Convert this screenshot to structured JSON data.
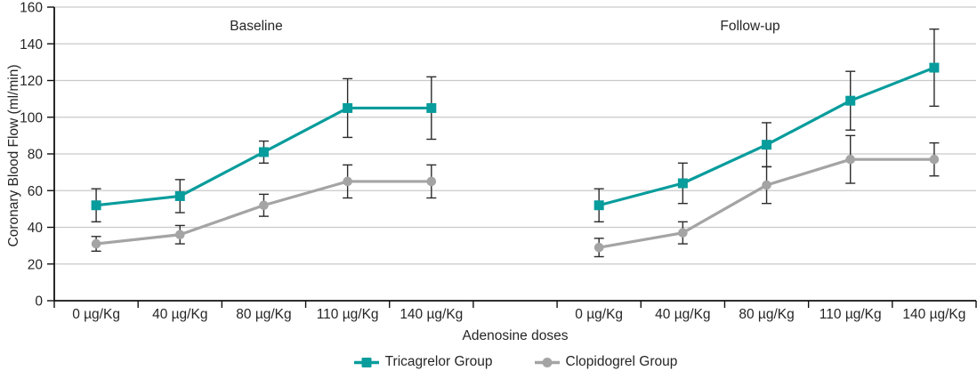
{
  "chart_data": {
    "type": "line",
    "title": "",
    "ylabel": "Coronary Blood Flow (ml/min)",
    "xlabel": "Adenosine doses",
    "ylim": [
      0,
      160
    ],
    "yticks": [
      0,
      20,
      40,
      60,
      80,
      100,
      120,
      140,
      160
    ],
    "grid": "horizontal-only",
    "legend_position": "bottom-center",
    "categories": [
      "0 µg/Kg",
      "40 µg/Kg",
      "80 µg/Kg",
      "110 µg/Kg",
      "140 µg/Kg"
    ],
    "panels": [
      {
        "label": "Baseline"
      },
      {
        "label": "Follow-up"
      }
    ],
    "series": [
      {
        "name": "Tricagrelor Group",
        "color": "#089c9c",
        "marker": "square",
        "data": [
          {
            "panel": "Baseline",
            "values": [
              52,
              57,
              81,
              105,
              105
            ],
            "errors": [
              9,
              9,
              6,
              16,
              17
            ]
          },
          {
            "panel": "Follow-up",
            "values": [
              52,
              64,
              85,
              109,
              127
            ],
            "errors": [
              9,
              11,
              12,
              16,
              21
            ]
          }
        ]
      },
      {
        "name": "Clopidogrel Group",
        "color": "#a4a4a4",
        "marker": "circle",
        "data": [
          {
            "panel": "Baseline",
            "values": [
              31,
              36,
              52,
              65,
              65
            ],
            "errors": [
              4,
              5,
              6,
              9,
              9
            ]
          },
          {
            "panel": "Follow-up",
            "values": [
              29,
              37,
              63,
              77,
              77
            ],
            "errors": [
              5,
              6,
              10,
              13,
              9
            ]
          }
        ]
      }
    ],
    "colors": {
      "grid": "#c9c9c9",
      "axis": "#111111",
      "error_bar": "#2b2b2b",
      "text": "#262626"
    }
  }
}
